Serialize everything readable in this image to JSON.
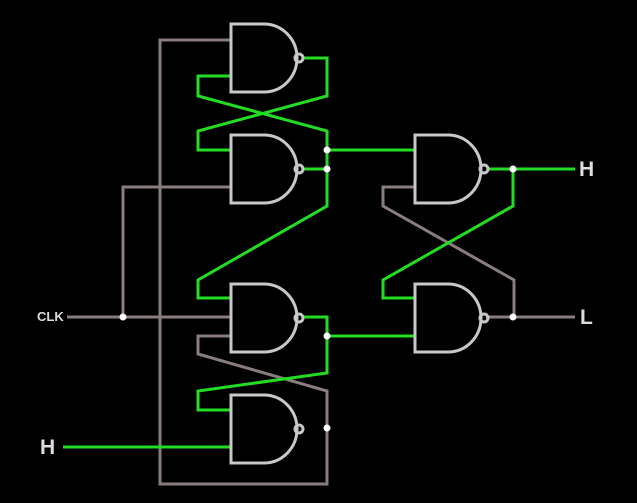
{
  "labels": {
    "clk": "CLK",
    "input_d": "H",
    "output_q": "H",
    "output_q_bar": "L"
  },
  "colors": {
    "background": "#000000",
    "gate_stroke": "#c8c8c8",
    "wire_high": "#22dd22",
    "wire_low": "#8a7d7d",
    "junction": "#ffffff",
    "label_text": "#dddddd"
  }
}
